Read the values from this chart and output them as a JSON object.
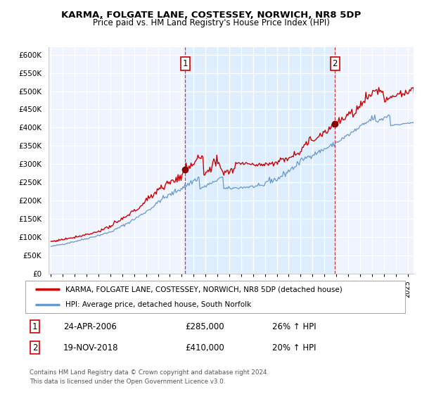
{
  "title": "KARMA, FOLGATE LANE, COSTESSEY, NORWICH, NR8 5DP",
  "subtitle": "Price paid vs. HM Land Registry's House Price Index (HPI)",
  "legend_line1": "KARMA, FOLGATE LANE, COSTESSEY, NORWICH, NR8 5DP (detached house)",
  "legend_line2": "HPI: Average price, detached house, South Norfolk",
  "annotation1_label": "1",
  "annotation1_date": "24-APR-2006",
  "annotation1_price": "£285,000",
  "annotation1_hpi": "26% ↑ HPI",
  "annotation2_label": "2",
  "annotation2_date": "19-NOV-2018",
  "annotation2_price": "£410,000",
  "annotation2_hpi": "20% ↑ HPI",
  "footnote": "Contains HM Land Registry data © Crown copyright and database right 2024.\nThis data is licensed under the Open Government Licence v3.0.",
  "yticks": [
    0,
    50000,
    100000,
    150000,
    200000,
    250000,
    300000,
    350000,
    400000,
    450000,
    500000,
    550000,
    600000
  ],
  "hpi_color": "#6699cc",
  "price_color": "#cc0000",
  "sale1_x": 2006.3,
  "sale1_y": 285000,
  "sale2_x": 2018.89,
  "sale2_y": 410000,
  "xlim_left": 1994.8,
  "xlim_right": 2025.5,
  "ylim_top": 620000,
  "shade_color": "#ddeeff",
  "grid_color": "#cccccc",
  "background_color": "#ffffff"
}
